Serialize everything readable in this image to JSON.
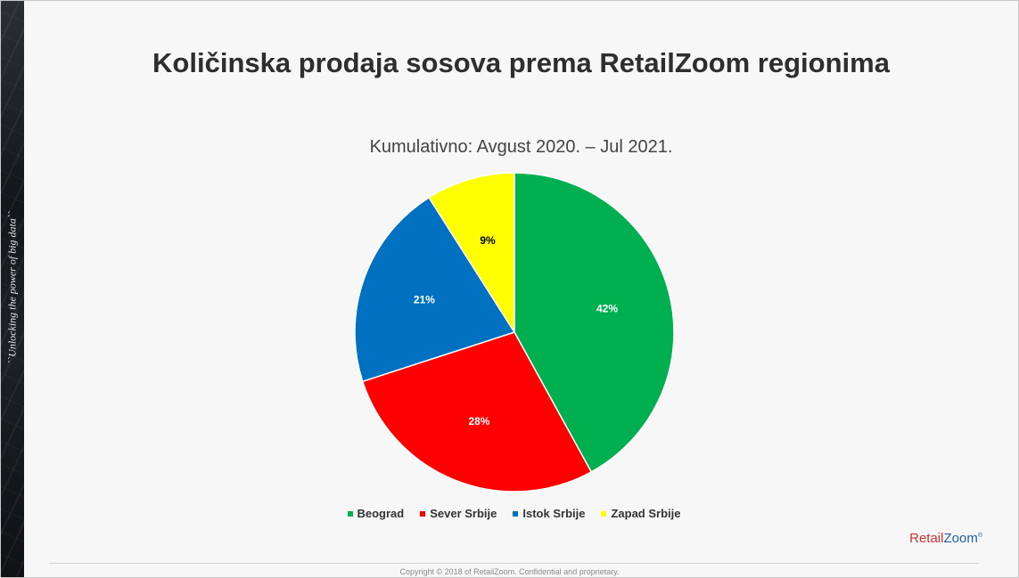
{
  "side_tagline": "``Unlocking the power of big data``",
  "chart_data": {
    "type": "pie",
    "title": "Količinska prodaja sosova prema RetailZoom regionima",
    "subtitle": "Kumulativno: Avgust 2020. – Jul 2021.",
    "categories": [
      "Beograd",
      "Sever Srbije",
      "Istok Srbije",
      "Zapad Srbije"
    ],
    "values": [
      42,
      28,
      21,
      9
    ],
    "value_labels": [
      "42%",
      "28%",
      "21%",
      "9%"
    ],
    "colors": [
      "#00b050",
      "#ff0000",
      "#0070c0",
      "#ffff00"
    ],
    "label_colors": [
      "#ffffff",
      "#ffffff",
      "#ffffff",
      "#000000"
    ],
    "start_angle": "12 o'clock",
    "direction": "clockwise",
    "legend_position": "bottom"
  },
  "logo": {
    "retail": "Retail",
    "zoom": "Zoom",
    "mark": "®"
  },
  "footer": {
    "copyright": "Copyright © 2018 of RetailZoom. Confidential and proprietary."
  }
}
